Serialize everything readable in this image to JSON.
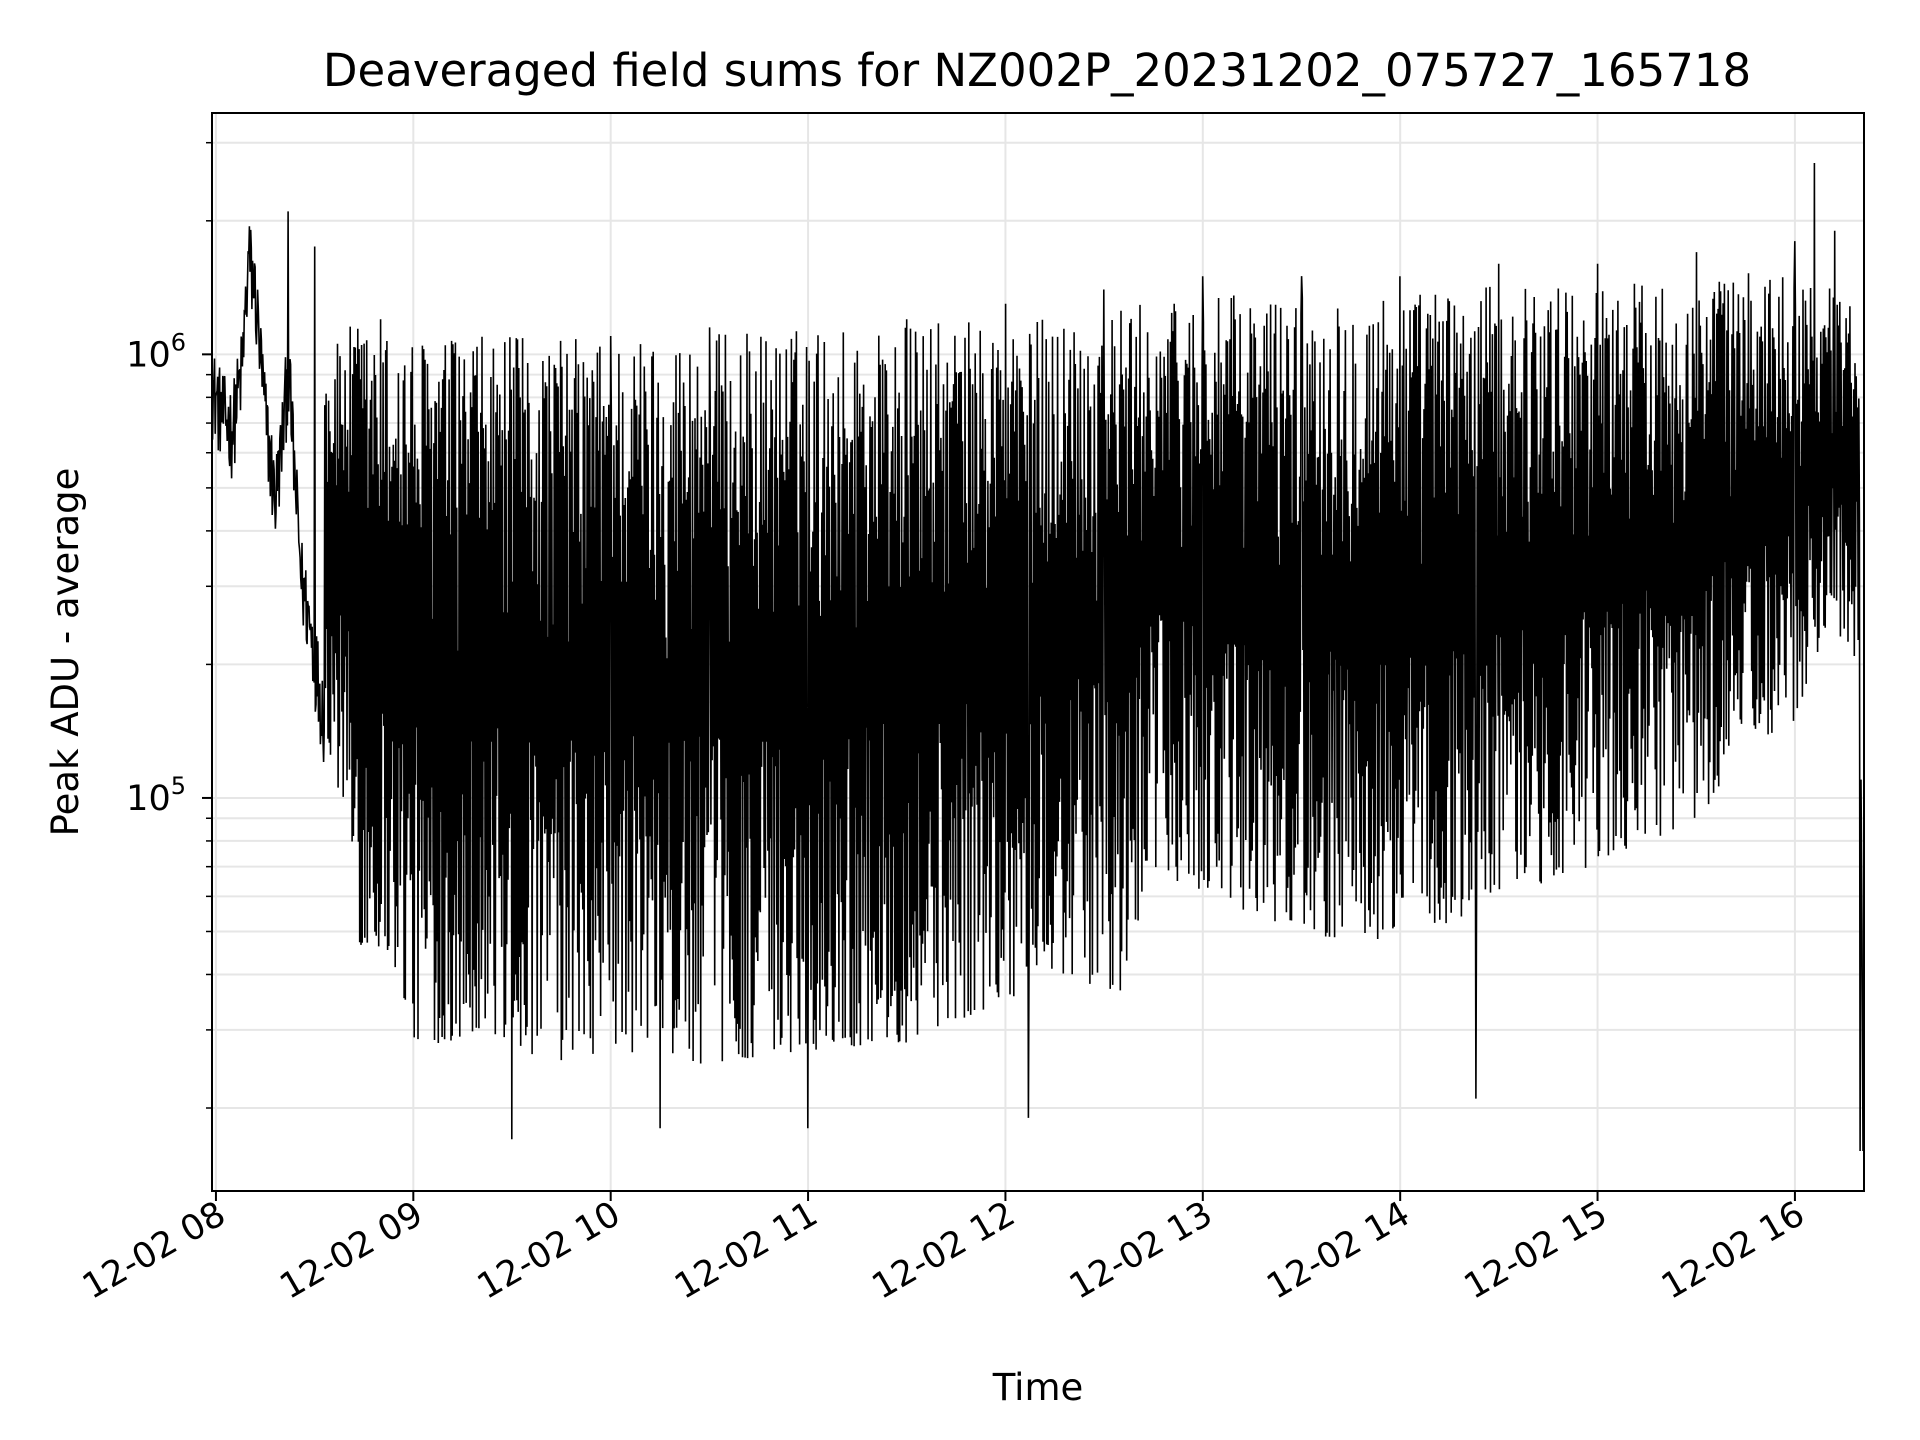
{
  "chart_data": {
    "type": "line",
    "title": "Deaveraged field sums for NZ002P_20231202_075727_165718",
    "xlabel": "Time",
    "ylabel": "Peak ADU - average",
    "x_ticks": [
      "12-02 08",
      "12-02 09",
      "12-02 10",
      "12-02 11",
      "12-02 12",
      "12-02 13",
      "12-02 14",
      "12-02 15",
      "12-02 16"
    ],
    "y_ticks": [
      {
        "base": "10",
        "exp": "5",
        "value": 100000
      },
      {
        "base": "10",
        "exp": "6",
        "value": 1000000
      }
    ],
    "y_scale": "log",
    "ylim": [
      13000,
      3500000
    ],
    "x_range_hours": [
      7.98,
      16.35
    ],
    "grid": true,
    "line_color": "#000000",
    "series": [
      {
        "style": "dense oscillating line",
        "points": [
          [
            "07:59",
            800000
          ],
          [
            "08:02",
            700000
          ],
          [
            "08:05",
            650000
          ],
          [
            "08:08",
            900000
          ],
          [
            "08:10",
            1600000
          ],
          [
            "08:12",
            1300000
          ],
          [
            "08:15",
            700000
          ],
          [
            "08:18",
            450000
          ],
          [
            "08:20",
            600000
          ],
          [
            "08:22",
            900000
          ],
          [
            "08:24",
            500000
          ],
          [
            "08:26",
            300000
          ],
          [
            "08:28",
            250000
          ],
          [
            "08:30",
            200000
          ],
          [
            "08:32",
            160000
          ],
          [
            "08:35",
            120000
          ],
          [
            "08:38",
            95000
          ],
          [
            "08:40",
            75000
          ],
          [
            "08:42",
            55000
          ],
          [
            "08:45",
            42000
          ],
          [
            "08:50",
            45000
          ],
          [
            "08:55",
            40000
          ],
          [
            "09:00",
            28000
          ],
          [
            "09:10",
            28000
          ],
          [
            "09:20",
            30000
          ],
          [
            "09:30",
            27000
          ],
          [
            "09:45",
            25000
          ],
          [
            "10:00",
            27000
          ],
          [
            "10:30",
            25000
          ],
          [
            "11:00",
            27000
          ],
          [
            "11:30",
            28000
          ],
          [
            "12:00",
            35000
          ],
          [
            "12:20",
            40000
          ],
          [
            "12:35",
            35000
          ],
          [
            "12:45",
            70000
          ],
          [
            "13:00",
            60000
          ],
          [
            "13:30",
            50000
          ],
          [
            "14:00",
            45000
          ],
          [
            "14:30",
            60000
          ],
          [
            "15:00",
            70000
          ],
          [
            "15:30",
            90000
          ],
          [
            "16:00",
            150000
          ],
          [
            "16:10",
            250000
          ],
          [
            "16:20",
            200000
          ],
          [
            "16:21",
            20000
          ]
        ],
        "peaks": [
          [
            "08:22",
            2100000
          ],
          [
            "08:30",
            1750000
          ],
          [
            "08:50",
            1200000
          ],
          [
            "09:30",
            1100000
          ],
          [
            "10:00",
            1100000
          ],
          [
            "10:30",
            1150000
          ],
          [
            "11:00",
            1200000
          ],
          [
            "11:30",
            1200000
          ],
          [
            "12:00",
            1300000
          ],
          [
            "12:30",
            1400000
          ],
          [
            "13:00",
            1500000
          ],
          [
            "13:30",
            1500000
          ],
          [
            "14:00",
            1500000
          ],
          [
            "14:30",
            1600000
          ],
          [
            "15:00",
            1600000
          ],
          [
            "15:30",
            1700000
          ],
          [
            "16:00",
            1800000
          ],
          [
            "16:06",
            2700000
          ],
          [
            "16:12",
            1900000
          ]
        ],
        "troughs": [
          [
            "09:30",
            17000
          ],
          [
            "10:15",
            18000
          ],
          [
            "11:00",
            18000
          ],
          [
            "12:07",
            19000
          ],
          [
            "14:23",
            21000
          ],
          [
            "16:20",
            16000
          ]
        ]
      }
    ]
  }
}
